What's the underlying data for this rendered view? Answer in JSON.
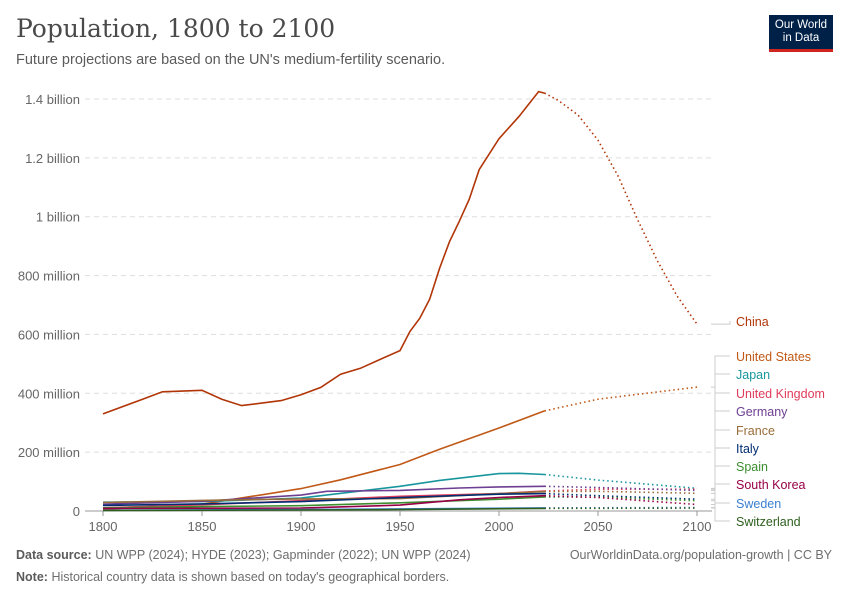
{
  "header": {
    "title": "Population, 1800 to 2100",
    "subtitle": "Future projections are based on the UN's medium-fertility scenario.",
    "logo": "Our World in Data"
  },
  "footer": {
    "source_label": "Data source:",
    "source": "UN WPP (2024); HYDE (2023); Gapminder (2022); UN WPP (2024)",
    "url": "OurWorldinData.org/population-growth | CC BY",
    "note_label": "Note:",
    "note": "Historical country data is shown based on today's geographical borders."
  },
  "chart_data": {
    "type": "line",
    "title": "Population, 1800 to 2100",
    "xlim": [
      1800,
      2100
    ],
    "ylim": [
      0,
      1400000000
    ],
    "grid": true,
    "legend": "right",
    "projection_start": 2023,
    "xticks": [
      1800,
      1850,
      1900,
      1950,
      2000,
      2050,
      2100
    ],
    "yticks": [
      {
        "v": 0,
        "label": "0"
      },
      {
        "v": 200000000,
        "label": "200 million"
      },
      {
        "v": 400000000,
        "label": "400 million"
      },
      {
        "v": 600000000,
        "label": "600 million"
      },
      {
        "v": 800000000,
        "label": "800 million"
      },
      {
        "v": 1000000000,
        "label": "1 billion"
      },
      {
        "v": 1200000000,
        "label": "1.2 billion"
      },
      {
        "v": 1400000000,
        "label": "1.4 billion"
      }
    ],
    "series": [
      {
        "name": "China",
        "color": "#B13507",
        "points": [
          [
            1800,
            330
          ],
          [
            1820,
            380
          ],
          [
            1830,
            405
          ],
          [
            1850,
            410
          ],
          [
            1860,
            380
          ],
          [
            1870,
            358
          ],
          [
            1890,
            375
          ],
          [
            1900,
            395
          ],
          [
            1910,
            420
          ],
          [
            1920,
            465
          ],
          [
            1930,
            485
          ],
          [
            1940,
            515
          ],
          [
            1950,
            545
          ],
          [
            1955,
            610
          ],
          [
            1960,
            655
          ],
          [
            1965,
            720
          ],
          [
            1970,
            825
          ],
          [
            1975,
            915
          ],
          [
            1980,
            985
          ],
          [
            1985,
            1060
          ],
          [
            1990,
            1160
          ],
          [
            2000,
            1265
          ],
          [
            2010,
            1340
          ],
          [
            2020,
            1425
          ],
          [
            2023,
            1420
          ],
          [
            2030,
            1395
          ],
          [
            2040,
            1345
          ],
          [
            2050,
            1260
          ],
          [
            2060,
            1140
          ],
          [
            2070,
            990
          ],
          [
            2080,
            850
          ],
          [
            2090,
            730
          ],
          [
            2100,
            635
          ]
        ]
      },
      {
        "name": "United States",
        "color": "#C05917",
        "points": [
          [
            1800,
            6
          ],
          [
            1850,
            23
          ],
          [
            1900,
            76
          ],
          [
            1920,
            106
          ],
          [
            1950,
            158
          ],
          [
            1970,
            210
          ],
          [
            2000,
            282
          ],
          [
            2023,
            340
          ],
          [
            2050,
            380
          ],
          [
            2100,
            421
          ]
        ]
      },
      {
        "name": "Japan",
        "color": "#18969D",
        "points": [
          [
            1800,
            30
          ],
          [
            1850,
            32
          ],
          [
            1900,
            44
          ],
          [
            1950,
            84
          ],
          [
            1970,
            104
          ],
          [
            2000,
            127
          ],
          [
            2010,
            128
          ],
          [
            2023,
            124
          ],
          [
            2050,
            105
          ],
          [
            2100,
            77
          ]
        ]
      },
      {
        "name": "United Kingdom",
        "color": "#E03C5B",
        "points": [
          [
            1800,
            11
          ],
          [
            1850,
            21
          ],
          [
            1900,
            35
          ],
          [
            1950,
            50
          ],
          [
            2000,
            59
          ],
          [
            2023,
            68
          ],
          [
            2050,
            74
          ],
          [
            2100,
            74
          ]
        ]
      },
      {
        "name": "Germany",
        "color": "#6D3E91",
        "points": [
          [
            1800,
            23
          ],
          [
            1850,
            33
          ],
          [
            1900,
            54
          ],
          [
            1913,
            67
          ],
          [
            1950,
            70
          ],
          [
            1980,
            78
          ],
          [
            2000,
            82
          ],
          [
            2023,
            84
          ],
          [
            2050,
            80
          ],
          [
            2100,
            70
          ]
        ]
      },
      {
        "name": "France",
        "color": "#996D39",
        "points": [
          [
            1800,
            29
          ],
          [
            1850,
            36
          ],
          [
            1900,
            41
          ],
          [
            1950,
            42
          ],
          [
            2000,
            59
          ],
          [
            2023,
            66
          ],
          [
            2050,
            67
          ],
          [
            2100,
            60
          ]
        ]
      },
      {
        "name": "Italy",
        "color": "#002D72",
        "points": [
          [
            1800,
            19
          ],
          [
            1850,
            24
          ],
          [
            1900,
            32
          ],
          [
            1950,
            46
          ],
          [
            2000,
            57
          ],
          [
            2023,
            59
          ],
          [
            2050,
            52
          ],
          [
            2100,
            40
          ]
        ]
      },
      {
        "name": "Spain",
        "color": "#3C8E2F",
        "points": [
          [
            1800,
            11
          ],
          [
            1850,
            15
          ],
          [
            1900,
            18
          ],
          [
            1950,
            28
          ],
          [
            2000,
            40
          ],
          [
            2023,
            48
          ],
          [
            2050,
            47
          ],
          [
            2100,
            35
          ]
        ]
      },
      {
        "name": "South Korea",
        "color": "#970046",
        "points": [
          [
            1800,
            9
          ],
          [
            1900,
            10
          ],
          [
            1950,
            20
          ],
          [
            1980,
            38
          ],
          [
            2000,
            46
          ],
          [
            2023,
            52
          ],
          [
            2050,
            46
          ],
          [
            2100,
            22
          ]
        ]
      },
      {
        "name": "Sweden",
        "color": "#3B7FD0",
        "points": [
          [
            1800,
            2.4
          ],
          [
            1900,
            5
          ],
          [
            1950,
            7
          ],
          [
            2023,
            10.5
          ],
          [
            2100,
            12
          ]
        ]
      },
      {
        "name": "Switzerland",
        "color": "#2E5F1E",
        "points": [
          [
            1800,
            1.7
          ],
          [
            1900,
            3.3
          ],
          [
            1950,
            4.7
          ],
          [
            2023,
            8.8
          ],
          [
            2100,
            10
          ]
        ]
      }
    ],
    "units": "million"
  }
}
